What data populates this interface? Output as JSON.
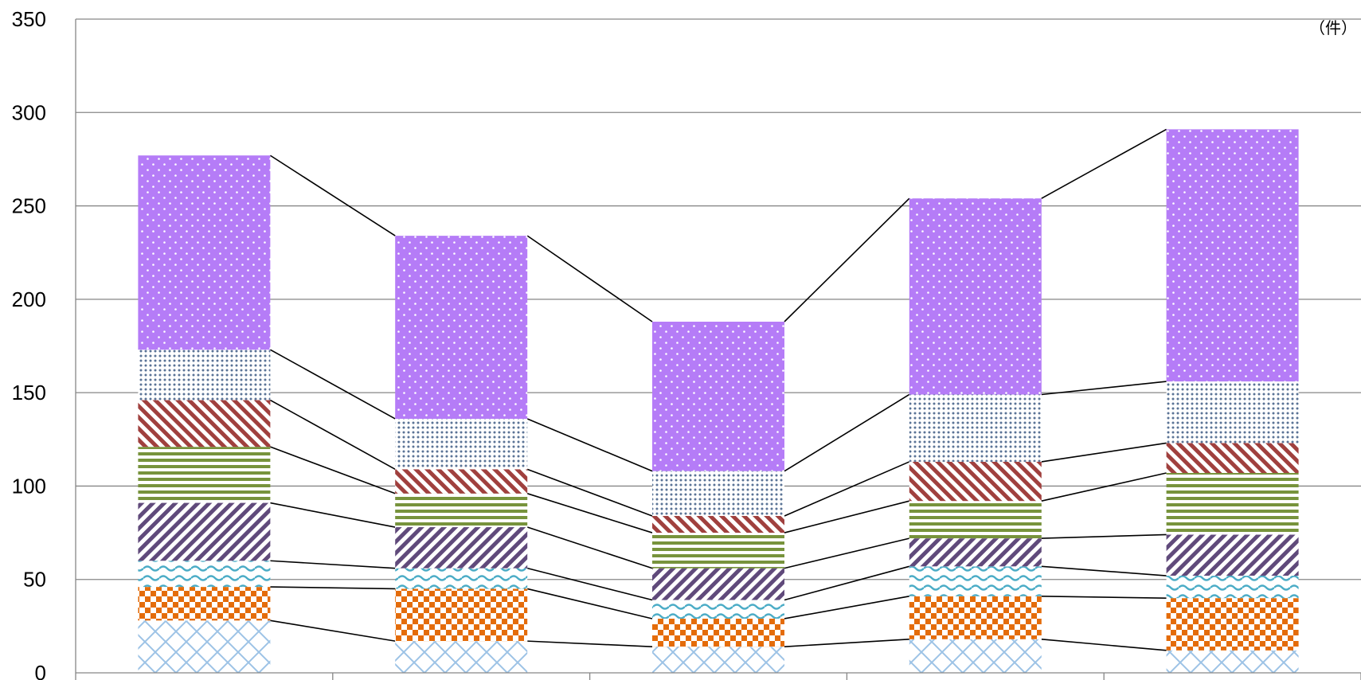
{
  "chart_data": {
    "type": "bar",
    "stacked": true,
    "title": "",
    "xlabel": "",
    "ylabel": "",
    "unit": "（件）",
    "ylim": [
      0,
      350
    ],
    "yticks": [
      0,
      50,
      100,
      150,
      200,
      250,
      300,
      350
    ],
    "grid": true,
    "legend": "none",
    "series_connector_lines": true,
    "categories": [
      "",
      "",
      "",
      "",
      ""
    ],
    "series": [
      {
        "pattern": "crosshatch",
        "color": "#9dc3e6",
        "values": [
          28,
          17,
          14,
          18,
          12
        ]
      },
      {
        "pattern": "checker",
        "color": "#e46c0a",
        "values": [
          18,
          28,
          15,
          23,
          28
        ]
      },
      {
        "pattern": "wave",
        "color": "#4bacc6",
        "values": [
          14,
          11,
          10,
          16,
          12
        ]
      },
      {
        "pattern": "diagonal-down",
        "color": "#604a7b",
        "values": [
          31,
          22,
          17,
          15,
          22
        ]
      },
      {
        "pattern": "horizontal-stripe",
        "color": "#77933c",
        "values": [
          30,
          18,
          19,
          20,
          33
        ]
      },
      {
        "pattern": "diagonal-up",
        "color": "#a0403e",
        "values": [
          25,
          13,
          9,
          21,
          16
        ]
      },
      {
        "pattern": "small-dots",
        "color": "#5a7396",
        "values": [
          27,
          27,
          24,
          36,
          33
        ]
      },
      {
        "pattern": "white-dots",
        "color": "#b57cf7",
        "values": [
          104,
          98,
          80,
          105,
          135
        ]
      }
    ]
  }
}
